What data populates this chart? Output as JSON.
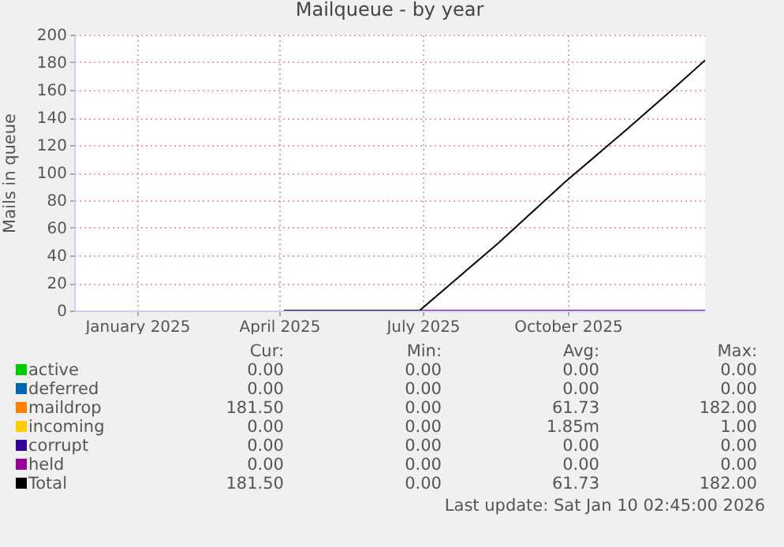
{
  "chart_data": {
    "type": "line",
    "title": "Mailqueue - by year",
    "ylabel": "Mails in queue",
    "xlim": [
      "2024-12-06",
      "2026-01-10"
    ],
    "xticks": [
      {
        "value": "2025-01-15",
        "label": "January 2025"
      },
      {
        "value": "2025-04-15",
        "label": "April 2025"
      },
      {
        "value": "2025-07-15",
        "label": "July 2025"
      },
      {
        "value": "2025-10-15",
        "label": "October 2025"
      }
    ],
    "ylim": [
      0,
      200
    ],
    "yticks": [
      0,
      20,
      40,
      60,
      80,
      100,
      120,
      140,
      160,
      180,
      200
    ],
    "grid": true,
    "legend": "bottom",
    "marker": "none",
    "line_style": "solid",
    "series": [
      {
        "name": "active",
        "color": "#00cc00"
      },
      {
        "name": "deferred",
        "color": "#0066b3"
      },
      {
        "name": "maildrop",
        "color": "#ff8000"
      },
      {
        "name": "incoming",
        "color": "#ffcc00"
      },
      {
        "name": "corrupt",
        "color": "#330099"
      },
      {
        "name": "held",
        "color": "#990099",
        "x": [
          "2025-04-18",
          "2026-01-10"
        ],
        "values": [
          0,
          0
        ]
      },
      {
        "name": "Total",
        "color": "#000000",
        "x": [
          "2025-04-18",
          "2025-07-13",
          "2025-09-01",
          "2025-10-13",
          "2025-11-20",
          "2025-12-20",
          "2026-01-10"
        ],
        "values": [
          0,
          0,
          49,
          93,
          130,
          160,
          181.5
        ]
      }
    ],
    "annotations": [
      "Cur:",
      "Min:",
      "Avg:",
      "Max:",
      "0.00",
      "0.00",
      "0.00",
      "0.00",
      "0.00",
      "0.00",
      "0.00",
      "0.00",
      "181.50",
      "0.00",
      "61.73",
      "182.00",
      "0.00",
      "0.00",
      "1.85m",
      "1.00",
      "0.00",
      "0.00",
      "0.00",
      "0.00",
      "0.00",
      "0.00",
      "0.00",
      "0.00",
      "181.50",
      "0.00",
      "61.73",
      "182.00",
      "Last update: Sat Jan 10 02:45:00 2026"
    ]
  }
}
